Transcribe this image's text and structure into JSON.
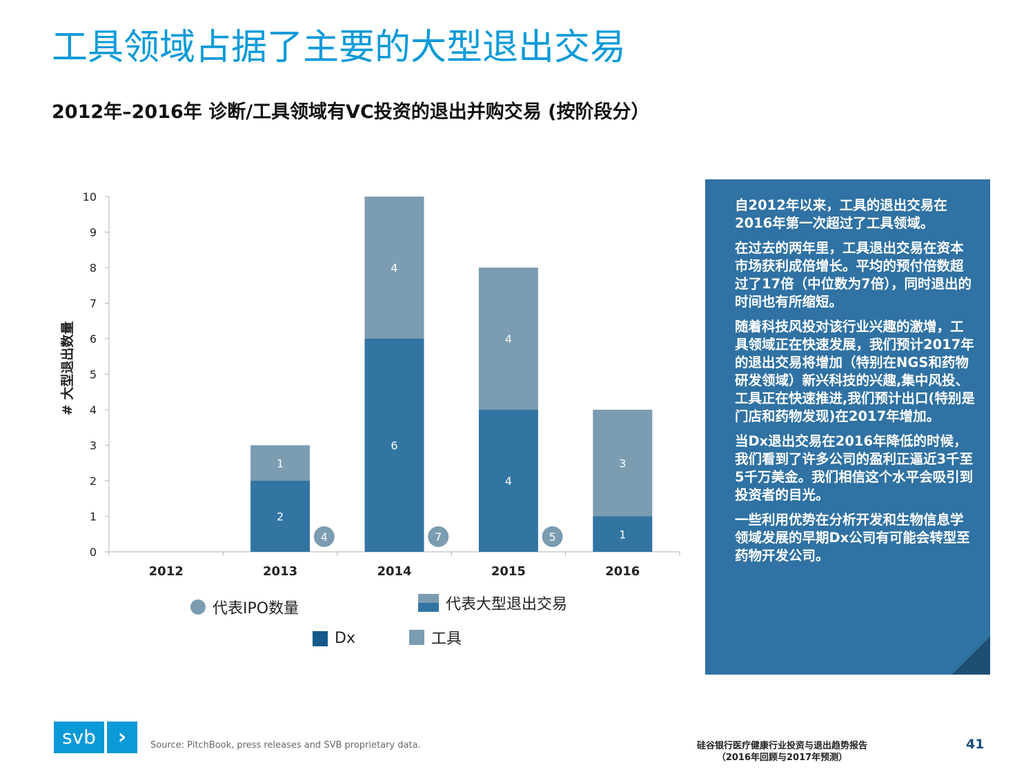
{
  "header": {
    "title": "工具领域占据了主要的大型退出交易",
    "subtitle": "2012年–2016年 诊断/工具领域有VC投资的退出并购交易 (按阶段分）"
  },
  "chart_data": {
    "type": "bar",
    "stacked": true,
    "categories": [
      "2012",
      "2013",
      "2014",
      "2015",
      "2016"
    ],
    "series": [
      {
        "name": "Dx",
        "color": "#3274a2",
        "values": [
          0,
          2,
          6,
          4,
          1
        ]
      },
      {
        "name": "工具",
        "color": "#7b9cb1",
        "values": [
          0,
          1,
          4,
          4,
          3
        ]
      }
    ],
    "ipo_counts": [
      null,
      4,
      7,
      5,
      null
    ],
    "ipo_color": "#7b9cb1",
    "ylabel": "# 大型退出数量",
    "ylim": [
      0,
      10
    ],
    "yticks": [
      "0",
      "1",
      "2",
      "3",
      "4",
      "5",
      "6",
      "7",
      "8",
      "9",
      "10"
    ],
    "legend": {
      "ipo_label": "代表IPO数量",
      "large_exit_label": "代表大型退出交易",
      "dx_label": "Dx",
      "tools_label": "工具"
    }
  },
  "panel": {
    "paragraphs": [
      "自2012年以来，工具的退出交易在2016年第一次超过了工具领域。",
      "在过去的两年里，工具退出交易在资本市场获利成倍增长。平均的预付倍数超过了17倍（中位数为7倍），同时退出的时间也有所缩短。",
      "随着科技风投对该行业兴趣的激增，工具领域正在快速发展，我们预计2017年的退出交易将增加（特别在NGS和药物研发领域）新兴科技的兴趣,集中风投、工具正在快速推进,我们预计出口(特别是门店和药物发现)在2017年增加。",
      "当Dx退出交易在2016年降低的时候，我们看到了许多公司的盈利正逼近3千至5千万美金。我们相信这个水平会吸引到投资者的目光。",
      "一些利用优势在分析开发和生物信息学领域发展的早期Dx公司有可能会转型至药物开发公司。"
    ]
  },
  "footer": {
    "logo_text": "svb",
    "logo_chevron": "›",
    "source": "Source: PitchBook, press releases and SVB proprietary data.",
    "report_line1": "硅谷银行医疗健康行业投资与退出趋势报告",
    "report_line2": "（2016年回顾与2017年预测）",
    "page_number": "41"
  }
}
